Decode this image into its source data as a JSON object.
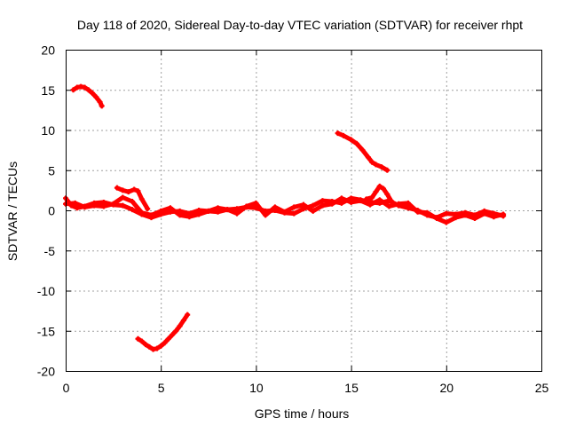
{
  "chart_data": {
    "type": "scatter",
    "title": "Day 118 of 2020, Sidereal Day-to-day VTEC variation (SDTVAR) for receiver rhpt",
    "xlabel": "GPS time / hours",
    "ylabel": "SDTVAR / TECUs",
    "xlim": [
      0,
      25
    ],
    "ylim": [
      -20,
      20
    ],
    "x_ticks": [
      0,
      5,
      10,
      15,
      20,
      25
    ],
    "y_ticks": [
      -20,
      -15,
      -10,
      -5,
      0,
      5,
      10,
      15,
      20
    ],
    "x_tick_labels": [
      "0",
      "5",
      "10",
      "15",
      "20",
      "25"
    ],
    "y_tick_labels": [
      "-20",
      "-15",
      "-10",
      "-5",
      "0",
      "5",
      "10",
      "15",
      "20"
    ],
    "grid": true,
    "series_color": "#ff0000",
    "series": [
      {
        "name": "main-band-a",
        "x": [
          0.0,
          0.3,
          0.6,
          1.0,
          1.5,
          2.0,
          2.5,
          3.0,
          3.5,
          4.0,
          4.5,
          5.0,
          5.5,
          6.0,
          6.5,
          7.0,
          7.5,
          8.0,
          8.5,
          9.0,
          9.5,
          10.0,
          10.5,
          11.0,
          11.5,
          12.0,
          12.5,
          13.0,
          13.5,
          14.0,
          14.5,
          15.0,
          15.5,
          16.0,
          16.5,
          17.0,
          17.5,
          18.0,
          18.5,
          19.0,
          19.5,
          20.0,
          20.5,
          21.0,
          21.5,
          22.0,
          22.5,
          23.0
        ],
        "y": [
          1.5,
          0.6,
          0.3,
          0.5,
          0.9,
          1.0,
          0.7,
          0.6,
          0.1,
          -0.5,
          -0.9,
          -0.5,
          -0.2,
          -0.1,
          -0.4,
          0.0,
          -0.1,
          -0.2,
          0.1,
          0.2,
          0.4,
          0.3,
          -0.1,
          0.0,
          -0.3,
          -0.4,
          0.2,
          0.6,
          1.2,
          1.1,
          0.9,
          1.5,
          1.3,
          1.0,
          0.9,
          1.2,
          0.6,
          0.3,
          0.0,
          -0.6,
          -0.9,
          -0.4,
          -0.5,
          -0.3,
          -0.6,
          -0.1,
          -0.4,
          -0.7
        ]
      },
      {
        "name": "main-band-b",
        "x": [
          0.0,
          0.5,
          1.0,
          1.5,
          2.0,
          2.5,
          3.0,
          3.5,
          4.0,
          4.5,
          5.0,
          5.5,
          6.0,
          6.5,
          7.0,
          7.5,
          8.0,
          8.5,
          9.0,
          9.5,
          10.0,
          10.5,
          11.0,
          11.5,
          12.0,
          12.5,
          13.0,
          13.5,
          14.0,
          14.5,
          15.0,
          15.5,
          16.0,
          16.5,
          17.0,
          17.5,
          18.0,
          18.5,
          19.0,
          19.5,
          20.0,
          20.5,
          21.0,
          21.5,
          22.0,
          22.5,
          23.0
        ],
        "y": [
          0.8,
          0.9,
          0.4,
          0.6,
          0.5,
          0.8,
          1.6,
          1.1,
          -0.3,
          -0.6,
          -0.1,
          0.3,
          -0.6,
          -0.8,
          -0.5,
          -0.1,
          0.3,
          0.1,
          -0.4,
          0.5,
          0.9,
          -0.6,
          0.4,
          -0.2,
          0.4,
          0.7,
          -0.1,
          0.6,
          0.8,
          1.5,
          1.0,
          1.2,
          0.7,
          1.3,
          0.5,
          0.8,
          0.9,
          -0.2,
          -0.3,
          -1.0,
          -1.5,
          -0.9,
          -0.6,
          -1.0,
          -0.4,
          -0.8,
          -0.5
        ]
      },
      {
        "name": "main-band-c",
        "x": [
          2.7,
          3.0,
          3.3,
          3.6,
          3.8,
          4.0,
          4.3
        ],
        "y": [
          2.8,
          2.5,
          2.3,
          2.6,
          2.4,
          1.4,
          0.2
        ]
      },
      {
        "name": "spike-16h",
        "x": [
          15.8,
          16.1,
          16.3,
          16.5,
          16.7,
          16.9,
          17.1
        ],
        "y": [
          1.4,
          1.6,
          2.3,
          3.0,
          2.7,
          2.0,
          1.2
        ]
      },
      {
        "name": "arc-upper-left",
        "x": [
          0.4,
          0.6,
          0.8,
          1.0,
          1.2,
          1.4,
          1.6,
          1.8,
          1.9
        ],
        "y": [
          15.0,
          15.3,
          15.4,
          15.3,
          15.0,
          14.6,
          14.1,
          13.5,
          13.0
        ]
      },
      {
        "name": "arc-lower-left",
        "x": [
          3.8,
          4.0,
          4.2,
          4.4,
          4.6,
          4.8,
          5.0,
          5.2,
          5.4,
          5.6,
          5.8,
          6.0,
          6.2,
          6.4
        ],
        "y": [
          -16.0,
          -16.3,
          -16.7,
          -17.0,
          -17.3,
          -17.2,
          -16.9,
          -16.5,
          -16.0,
          -15.5,
          -15.0,
          -14.4,
          -13.7,
          -13.0
        ]
      },
      {
        "name": "arc-upper-right",
        "x": [
          14.3,
          14.6,
          15.0,
          15.3,
          15.6,
          15.9,
          16.1,
          16.3,
          16.6,
          16.9
        ],
        "y": [
          9.6,
          9.3,
          8.8,
          8.3,
          7.5,
          6.6,
          6.0,
          5.7,
          5.4,
          5.0
        ]
      }
    ]
  }
}
